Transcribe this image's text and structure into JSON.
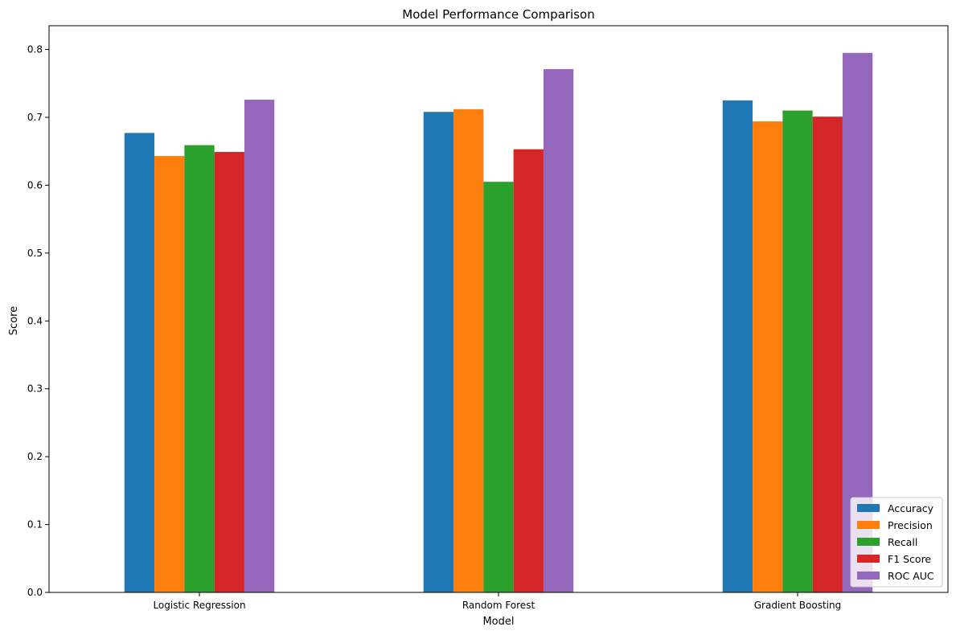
{
  "chart_data": {
    "type": "bar",
    "title": "Model Performance Comparison",
    "xlabel": "Model",
    "ylabel": "Score",
    "categories": [
      "Logistic Regression",
      "Random Forest",
      "Gradient Boosting"
    ],
    "series": [
      {
        "name": "Accuracy",
        "color": "#1f77b4",
        "values": [
          0.677,
          0.708,
          0.725
        ]
      },
      {
        "name": "Precision",
        "color": "#ff7f0e",
        "values": [
          0.643,
          0.712,
          0.694
        ]
      },
      {
        "name": "Recall",
        "color": "#2ca02c",
        "values": [
          0.659,
          0.605,
          0.71
        ]
      },
      {
        "name": "F1 Score",
        "color": "#d62728",
        "values": [
          0.649,
          0.653,
          0.701
        ]
      },
      {
        "name": "ROC AUC",
        "color": "#9467bd",
        "values": [
          0.726,
          0.771,
          0.795
        ]
      }
    ],
    "ylim": [
      0,
      0.835
    ],
    "yticks": [
      "0.0",
      "0.1",
      "0.2",
      "0.3",
      "0.4",
      "0.5",
      "0.6",
      "0.7",
      "0.8"
    ],
    "grid": false,
    "legend": {
      "position": "lower-right"
    }
  }
}
